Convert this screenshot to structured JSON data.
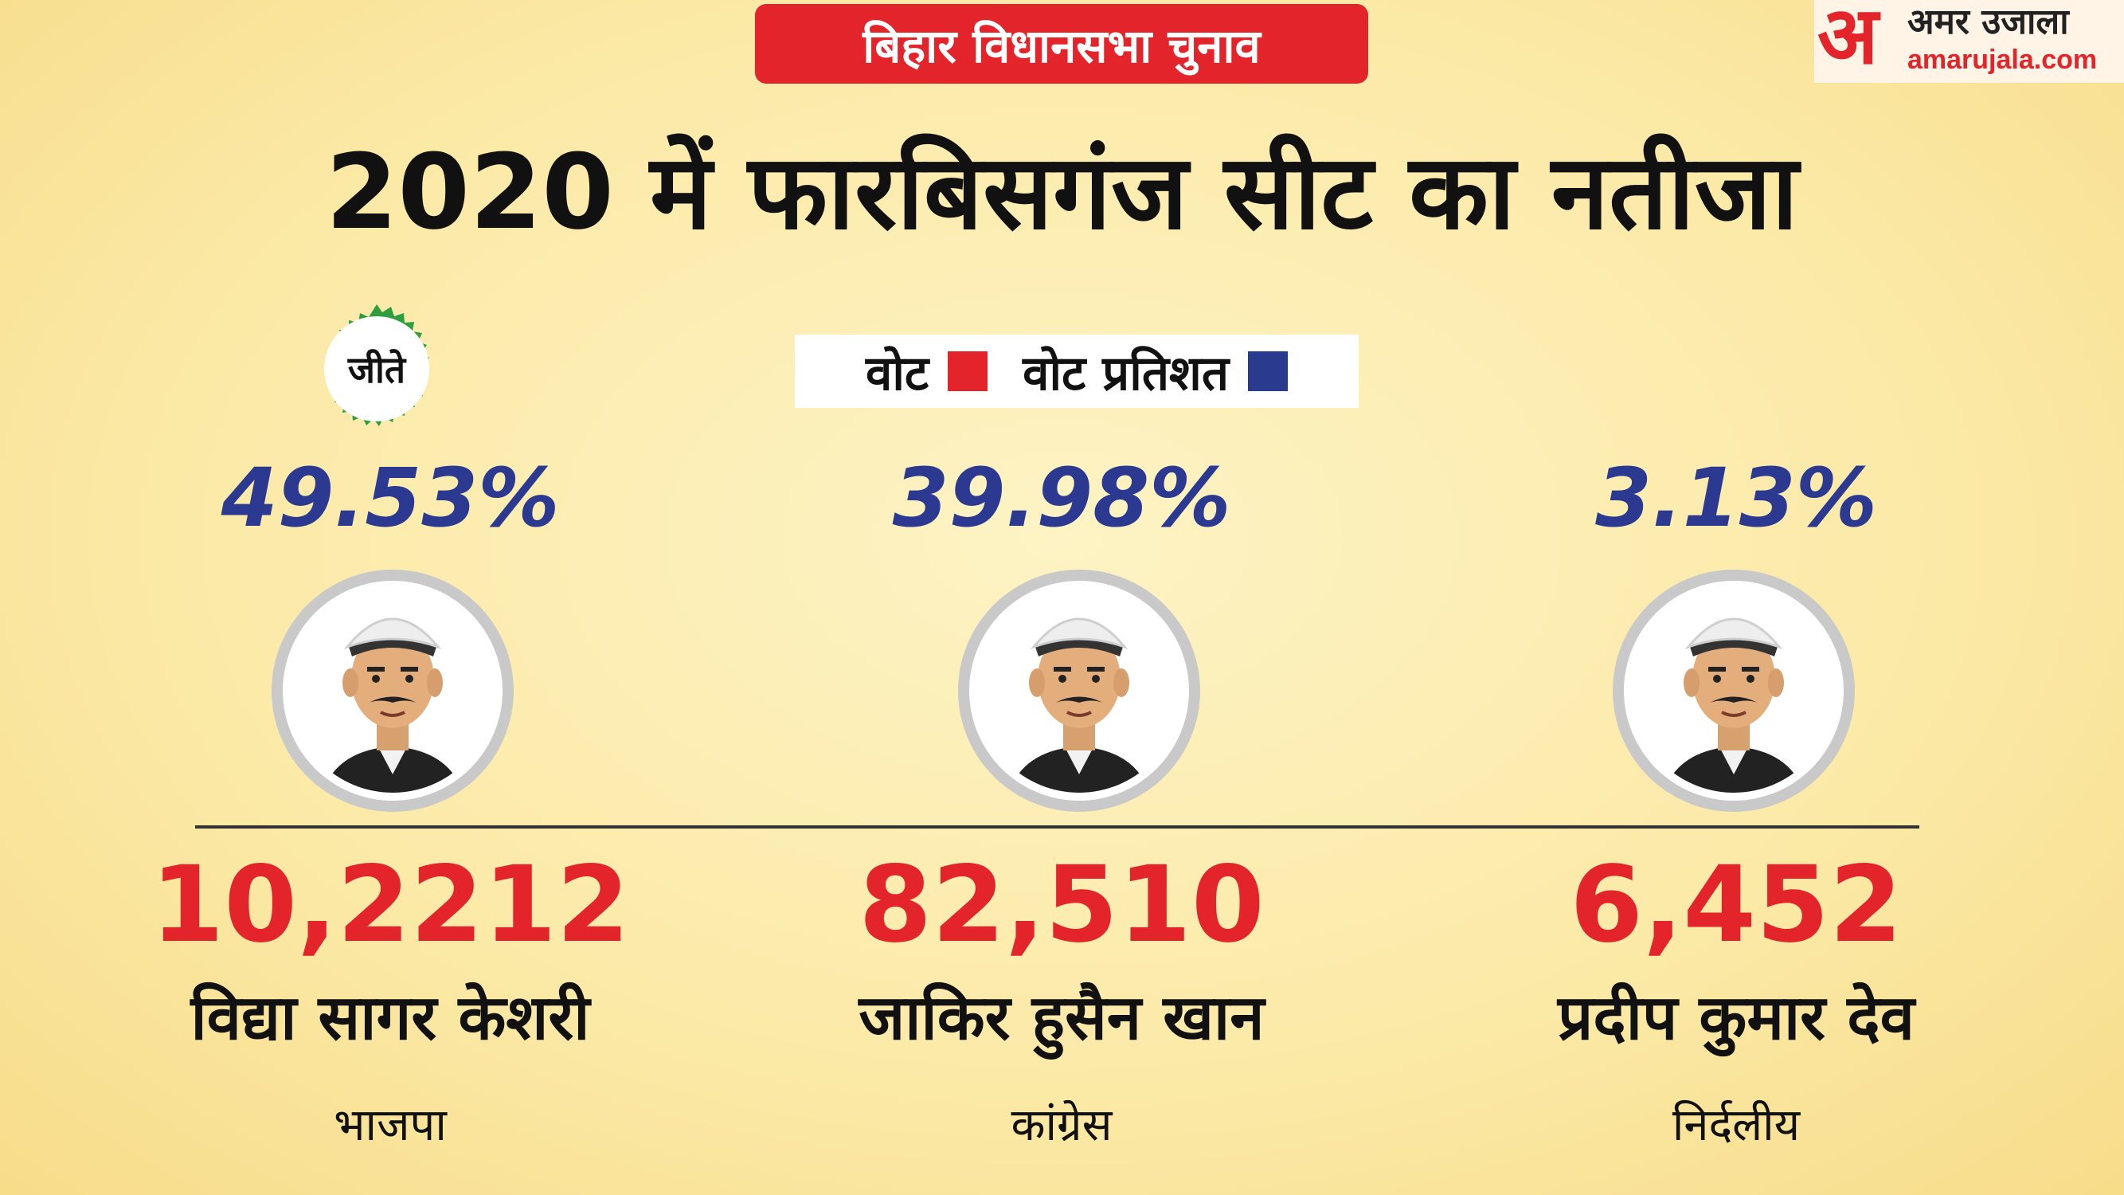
{
  "header": {
    "category": "बिहार विधानसभा चुनाव",
    "title": "2020 में फारबिसगंज सीट का नतीजा"
  },
  "logo": {
    "glyph": "अ",
    "name": "अमर उजाला",
    "site": "amarujala.com"
  },
  "legend": {
    "votes_label": "वोट",
    "percent_label": "वोट प्रतिशत",
    "votes_color": "#e3242b",
    "percent_color": "#293a8f"
  },
  "winner_badge": "जीते",
  "candidates": [
    {
      "percent": "49.53%",
      "votes": "10,2212",
      "name": "विद्या सागर केशरी",
      "party": "भाजपा",
      "winner": true
    },
    {
      "percent": "39.98%",
      "votes": "82,510",
      "name": "जाकिर हुसैन खान",
      "party": "कांग्रेस",
      "winner": false
    },
    {
      "percent": "3.13%",
      "votes": "6,452",
      "name": "प्रदीप कुमार देव",
      "party": "निर्दलीय",
      "winner": false
    }
  ]
}
